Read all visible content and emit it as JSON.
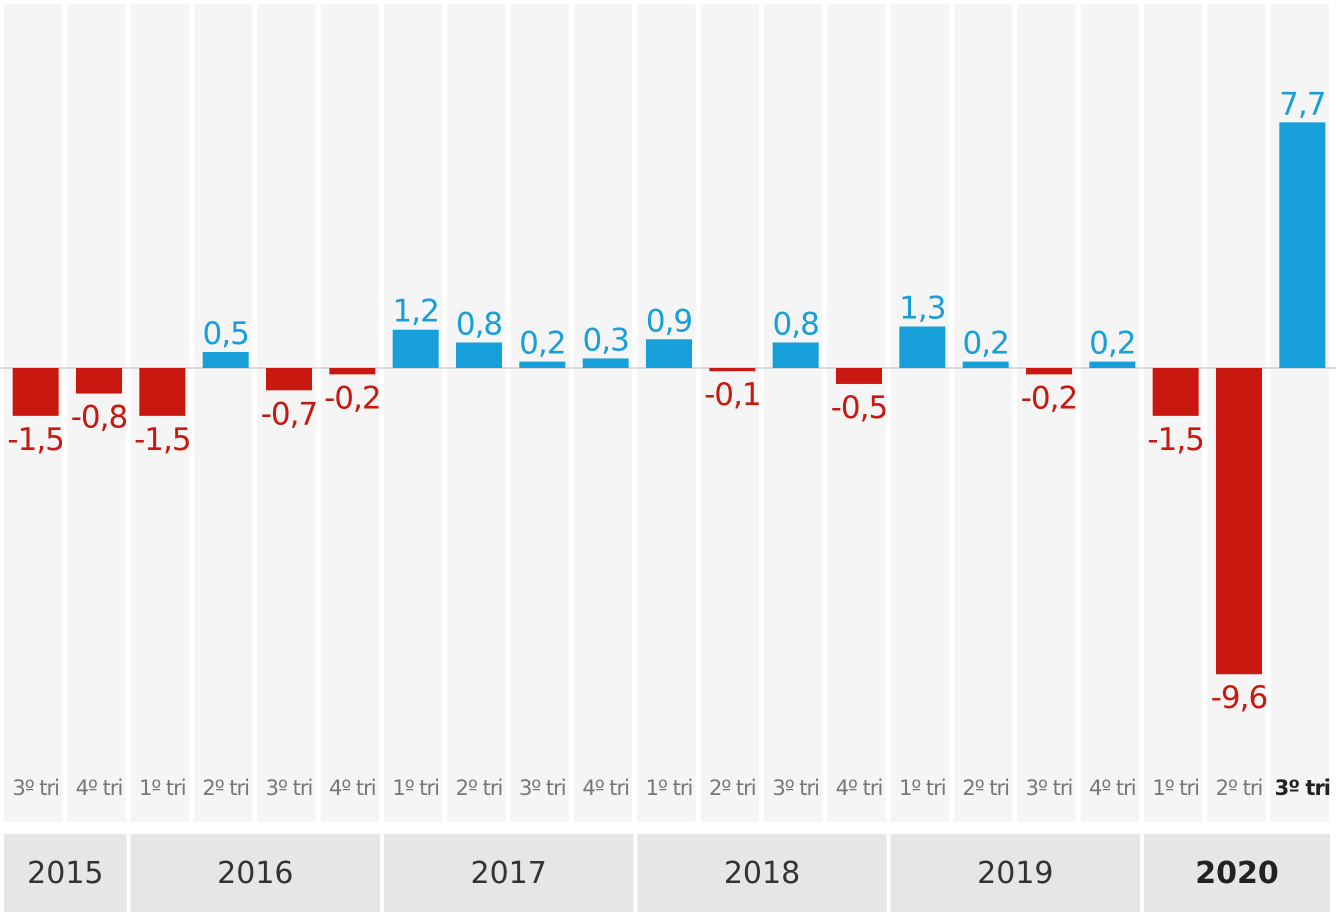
{
  "chart_data": {
    "type": "bar",
    "categories": [
      "3º tri",
      "4º tri",
      "1º tri",
      "2º tri",
      "3º tri",
      "4º tri",
      "1º tri",
      "2º tri",
      "3º tri",
      "4º tri",
      "1º tri",
      "2º tri",
      "3º tri",
      "4º tri",
      "1º tri",
      "2º tri",
      "3º tri",
      "4º tri",
      "1º tri",
      "2º tri",
      "3º tri"
    ],
    "values": [
      -1.5,
      -0.8,
      -1.5,
      0.5,
      -0.7,
      -0.2,
      1.2,
      0.8,
      0.2,
      0.3,
      0.9,
      -0.1,
      0.8,
      -0.5,
      1.3,
      0.2,
      -0.2,
      0.2,
      -1.5,
      -9.6,
      7.7
    ],
    "value_labels": [
      "-1,5",
      "-0,8",
      "-1,5",
      "0,5",
      "-0,7",
      "-0,2",
      "1,2",
      "0,8",
      "0,2",
      "0,3",
      "0,9",
      "-0,1",
      "0,8",
      "-0,5",
      "1,3",
      "0,2",
      "-0,2",
      "0,2",
      "-1,5",
      "-9,6",
      "7,7"
    ],
    "year_groups": [
      {
        "label": "2015",
        "count": 2
      },
      {
        "label": "2016",
        "count": 4
      },
      {
        "label": "2017",
        "count": 4
      },
      {
        "label": "2018",
        "count": 4
      },
      {
        "label": "2019",
        "count": 4
      },
      {
        "label": "2020",
        "count": 3
      }
    ],
    "highlight_index": 20,
    "highlight_year": "2020",
    "ylim": [
      -11.2,
      11.3
    ],
    "grid": false,
    "colors": {
      "positive": "#169fd8",
      "negative": "#c8180f"
    },
    "title": "",
    "xlabel": "",
    "ylabel": ""
  }
}
